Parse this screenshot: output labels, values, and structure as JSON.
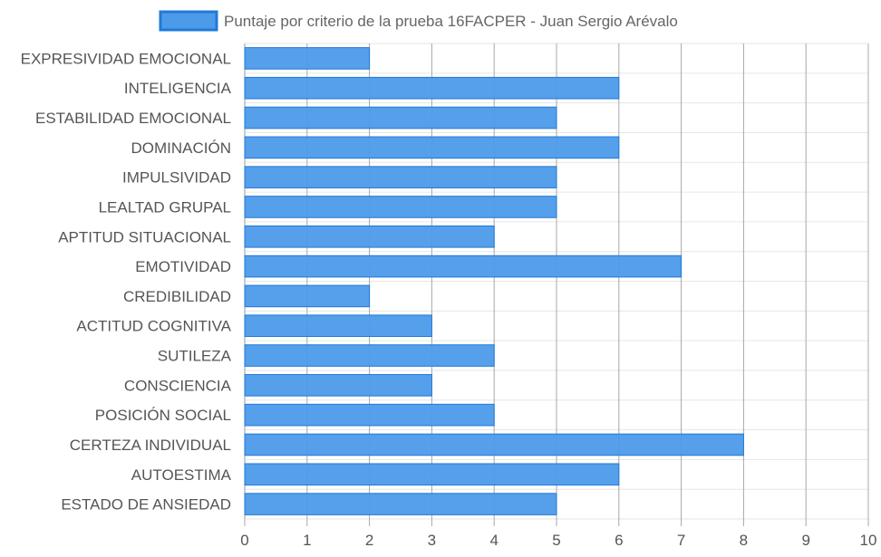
{
  "chart_data": {
    "type": "bar",
    "orientation": "horizontal",
    "title": "",
    "xlabel": "",
    "ylabel": "",
    "xlim": [
      0,
      10
    ],
    "x_ticks": [
      "0",
      "1",
      "2",
      "3",
      "4",
      "5",
      "6",
      "7",
      "8",
      "9",
      "10"
    ],
    "grid": true,
    "legend_position": "top",
    "categories": [
      "EXPRESIVIDAD EMOCIONAL",
      "INTELIGENCIA",
      "ESTABILIDAD EMOCIONAL",
      "DOMINACIÓN",
      "IMPULSIVIDAD",
      "LEALTAD GRUPAL",
      "APTITUD SITUACIONAL",
      "EMOTIVIDAD",
      "CREDIBILIDAD",
      "ACTITUD COGNITIVA",
      "SUTILEZA",
      "CONSCIENCIA",
      "POSICIÓN SOCIAL",
      "CERTEZA INDIVIDUAL",
      "AUTOESTIMA",
      "ESTADO DE ANSIEDAD"
    ],
    "series": [
      {
        "name": "Puntaje por criterio de la prueba 16FACPER - Juan Sergio Arévalo",
        "values": [
          2,
          6,
          5,
          6,
          5,
          5,
          4,
          7,
          2,
          3,
          4,
          3,
          4,
          8,
          6,
          5
        ],
        "color": "#4c9aea",
        "border_color": "#1f7ad8"
      }
    ]
  }
}
